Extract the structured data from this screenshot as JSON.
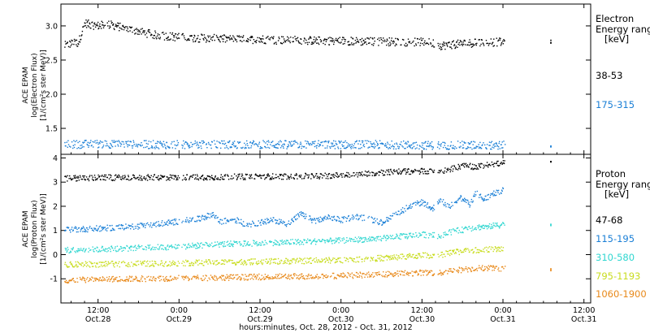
{
  "chart_data": {
    "type": "scatter",
    "xlabel": "hours:minutes, Oct. 28, 2012 - Oct. 31, 2012",
    "x_ticks": [
      {
        "time": "12:00",
        "date": "Oct.28",
        "hours": 12
      },
      {
        "time": "0:00",
        "date": "Oct.29",
        "hours": 24
      },
      {
        "time": "12:00",
        "date": "Oct.29",
        "hours": 36
      },
      {
        "time": "0:00",
        "date": "Oct.30",
        "hours": 48
      },
      {
        "time": "12:00",
        "date": "Oct.30",
        "hours": 60
      },
      {
        "time": "0:00",
        "date": "Oct.31",
        "hours": 72
      },
      {
        "time": "12:00",
        "date": "Oct.31",
        "hours": 84
      }
    ],
    "xlim_hours": [
      6.5,
      85
    ],
    "panels": [
      {
        "id": "electron",
        "ylabel_lines": [
          "ACE EPAM",
          "log(Electron Flux)",
          "[1/(cm²s ster MeV)]"
        ],
        "ylim": [
          1.12,
          3.32
        ],
        "yticks": [
          "1.5",
          "2.0",
          "2.5",
          "3.0"
        ],
        "legend_title_lines": [
          "Electron",
          "Energy ranges",
          "[keV]"
        ],
        "series": [
          {
            "name": "38-53",
            "color": "#000000",
            "x": [
              7,
              8,
              9,
              10,
              11,
              12,
              13,
              14,
              16,
              18,
              20,
              22,
              24,
              27,
              30,
              33,
              36,
              39,
              42,
              45,
              48,
              51,
              54,
              57,
              60,
              61.5,
              62.5,
              64,
              66,
              68,
              70,
              72,
              79
            ],
            "y": [
              2.72,
              2.75,
              2.76,
              3.05,
              3.02,
              3.01,
              3.03,
              3.02,
              2.97,
              2.93,
              2.88,
              2.86,
              2.84,
              2.83,
              2.82,
              2.81,
              2.81,
              2.8,
              2.8,
              2.79,
              2.79,
              2.78,
              2.78,
              2.77,
              2.77,
              2.76,
              2.72,
              2.73,
              2.75,
              2.76,
              2.77,
              2.77,
              2.78
            ]
          },
          {
            "name": "175-315",
            "color": "#1a7fd6",
            "x": [
              7,
              12,
              18,
              24,
              30,
              36,
              42,
              48,
              54,
              60,
              62.5,
              66,
              72,
              79
            ],
            "y": [
              1.27,
              1.28,
              1.27,
              1.27,
              1.27,
              1.27,
              1.27,
              1.27,
              1.27,
              1.26,
              1.26,
              1.26,
              1.26,
              1.25
            ]
          }
        ]
      },
      {
        "id": "proton",
        "ylabel_lines": [
          "ACE EPAM",
          "log(Proton Flux)",
          "[1/(cm²s ster MeV)]"
        ],
        "ylim": [
          -2.0,
          4.15
        ],
        "yticks": [
          "-1",
          "0",
          "1",
          "2",
          "3",
          "4"
        ],
        "legend_title_lines": [
          "Proton",
          "Energy ranges",
          "[keV]"
        ],
        "series": [
          {
            "name": "47-68",
            "color": "#000000",
            "x": [
              7,
              12,
              18,
              24,
              30,
              36,
              40,
              44,
              48,
              50,
              53,
              56,
              60,
              61.5,
              62.5,
              64,
              66,
              68,
              70,
              72,
              79
            ],
            "y": [
              3.18,
              3.2,
              3.21,
              3.22,
              3.23,
              3.25,
              3.26,
              3.27,
              3.3,
              3.33,
              3.4,
              3.45,
              3.48,
              3.45,
              3.45,
              3.55,
              3.7,
              3.65,
              3.75,
              3.8,
              3.85
            ]
          },
          {
            "name": "115-195",
            "color": "#1a7fd6",
            "x": [
              7,
              12,
              15,
              18,
              21,
              24,
              27,
              29,
              30,
              32,
              34,
              36,
              38,
              40,
              42,
              44,
              46,
              48,
              50,
              52,
              54,
              56,
              58,
              60,
              61.5,
              62.5,
              64,
              65.5,
              67,
              68,
              69,
              71,
              72
            ],
            "y": [
              1.05,
              1.1,
              1.15,
              1.2,
              1.3,
              1.4,
              1.5,
              1.7,
              1.35,
              1.5,
              1.25,
              1.35,
              1.45,
              1.3,
              1.7,
              1.4,
              1.55,
              1.45,
              1.6,
              1.5,
              1.35,
              1.7,
              2.0,
              2.2,
              1.9,
              2.3,
              2.0,
              2.4,
              2.1,
              2.6,
              2.3,
              2.6,
              2.7
            ]
          },
          {
            "name": "310-580",
            "color": "#2fd6d0",
            "x": [
              7,
              12,
              18,
              24,
              30,
              36,
              42,
              48,
              54,
              60,
              62.5,
              64,
              66,
              68,
              70,
              72,
              79
            ],
            "y": [
              0.2,
              0.25,
              0.3,
              0.35,
              0.45,
              0.5,
              0.55,
              0.6,
              0.7,
              0.85,
              0.8,
              0.95,
              1.05,
              1.15,
              1.2,
              1.25,
              1.25
            ]
          },
          {
            "name": "795-1193",
            "color": "#c8dc1e",
            "x": [
              7,
              12,
              18,
              24,
              30,
              36,
              42,
              48,
              54,
              60,
              62.5,
              64,
              66,
              68,
              70,
              72
            ],
            "y": [
              -0.4,
              -0.38,
              -0.36,
              -0.33,
              -0.3,
              -0.27,
              -0.24,
              -0.2,
              -0.12,
              -0.02,
              0.0,
              0.1,
              0.15,
              0.2,
              0.25,
              0.25
            ]
          },
          {
            "name": "1060-1900",
            "color": "#e8891a",
            "x": [
              7,
              12,
              18,
              24,
              30,
              36,
              42,
              48,
              54,
              60,
              62.5,
              64,
              66,
              68,
              70,
              72,
              79
            ],
            "y": [
              -1.05,
              -1.0,
              -0.98,
              -0.95,
              -0.93,
              -0.9,
              -0.88,
              -0.85,
              -0.8,
              -0.72,
              -0.75,
              -0.65,
              -0.6,
              -0.55,
              -0.52,
              -0.55,
              -0.6
            ]
          }
        ]
      }
    ]
  }
}
